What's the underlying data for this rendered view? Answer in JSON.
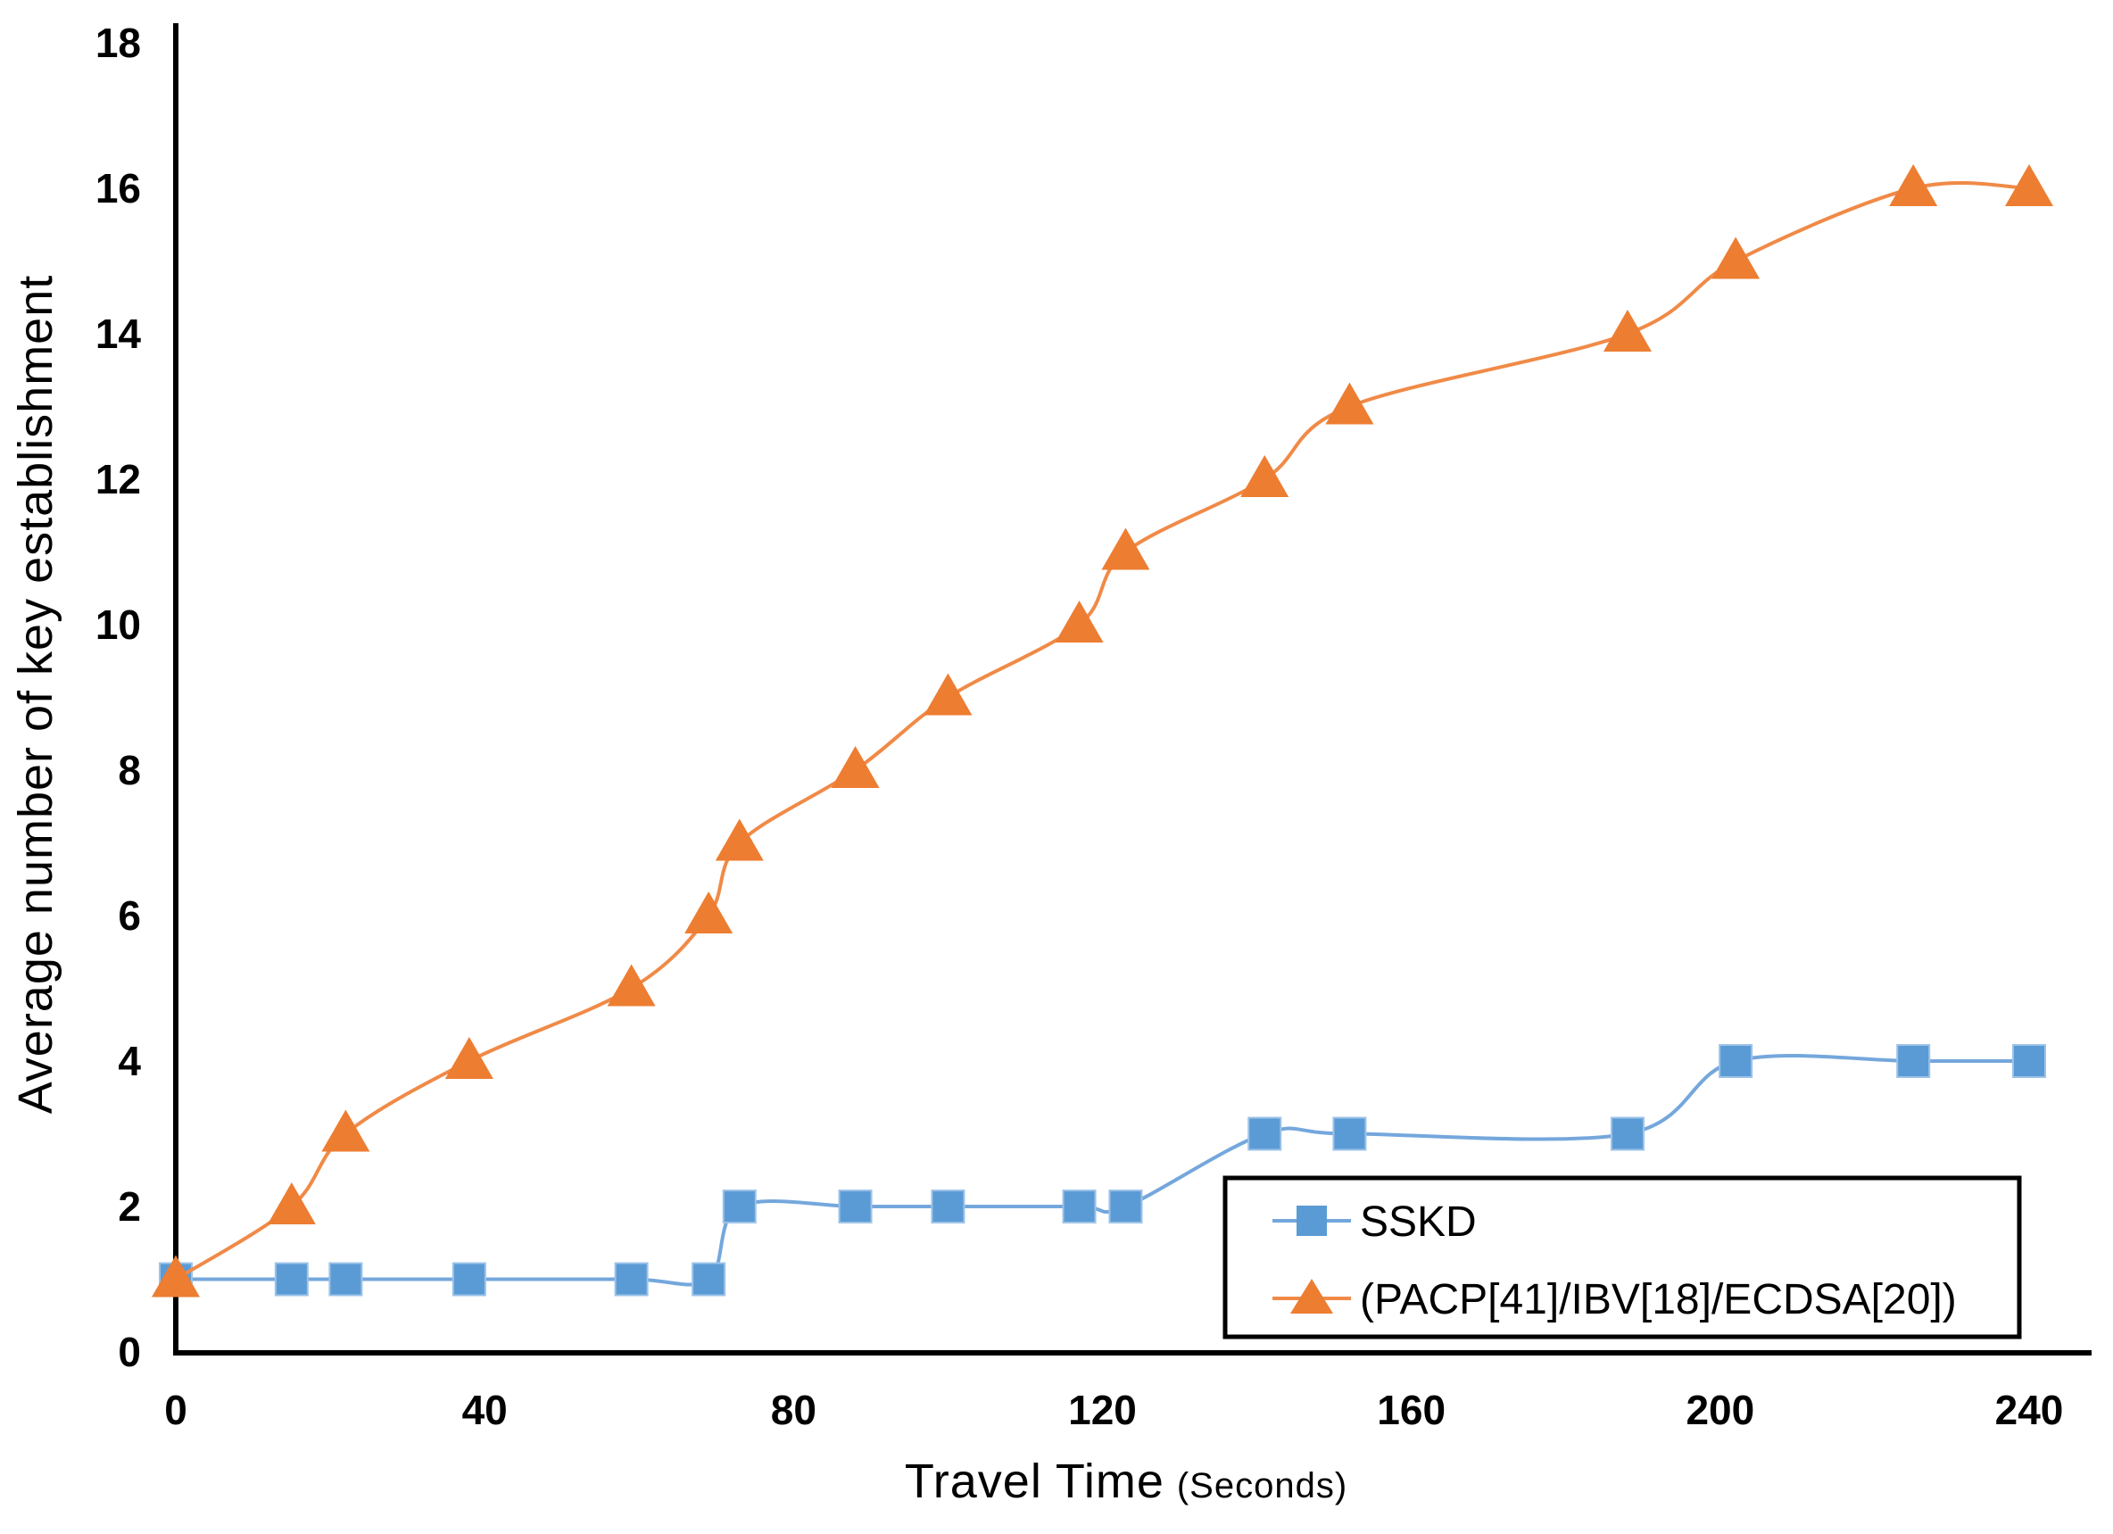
{
  "figure": {
    "background": "#ffffff"
  },
  "chart_data": {
    "type": "line",
    "title": "",
    "xlabel": "Travel Time",
    "xlabel_unit": "(Seconds)",
    "ylabel": "Average number of key establishment",
    "x": [
      0,
      15,
      22,
      38,
      59,
      69,
      73,
      88,
      100,
      117,
      123,
      141,
      152,
      188,
      202,
      225,
      240
    ],
    "series": [
      {
        "name": "SSKD",
        "marker": "square",
        "color": "#5B9BD5",
        "line_color": "#74A7DC",
        "values": [
          1,
          1,
          1,
          1,
          1,
          1,
          2,
          2,
          2,
          2,
          2,
          3,
          3,
          3,
          4,
          4,
          4
        ]
      },
      {
        "name": "(PACP[41]/IBV[18]/ECDSA[20])",
        "marker": "triangle",
        "color": "#ED7D31",
        "line_color": "#F08A47",
        "values": [
          1,
          2,
          3,
          4,
          5,
          6,
          7,
          8,
          9,
          10,
          11,
          12,
          13,
          14,
          15,
          16,
          16
        ]
      }
    ],
    "xlim": [
      0,
      240
    ],
    "ylim": [
      0,
      18
    ],
    "x_ticks": [
      0,
      40,
      80,
      120,
      160,
      200,
      240
    ],
    "y_ticks": [
      0,
      2,
      4,
      6,
      8,
      10,
      12,
      14,
      16,
      18
    ],
    "grid": false,
    "legend_position": "inside-bottom-right",
    "axis_color": "#000000"
  }
}
